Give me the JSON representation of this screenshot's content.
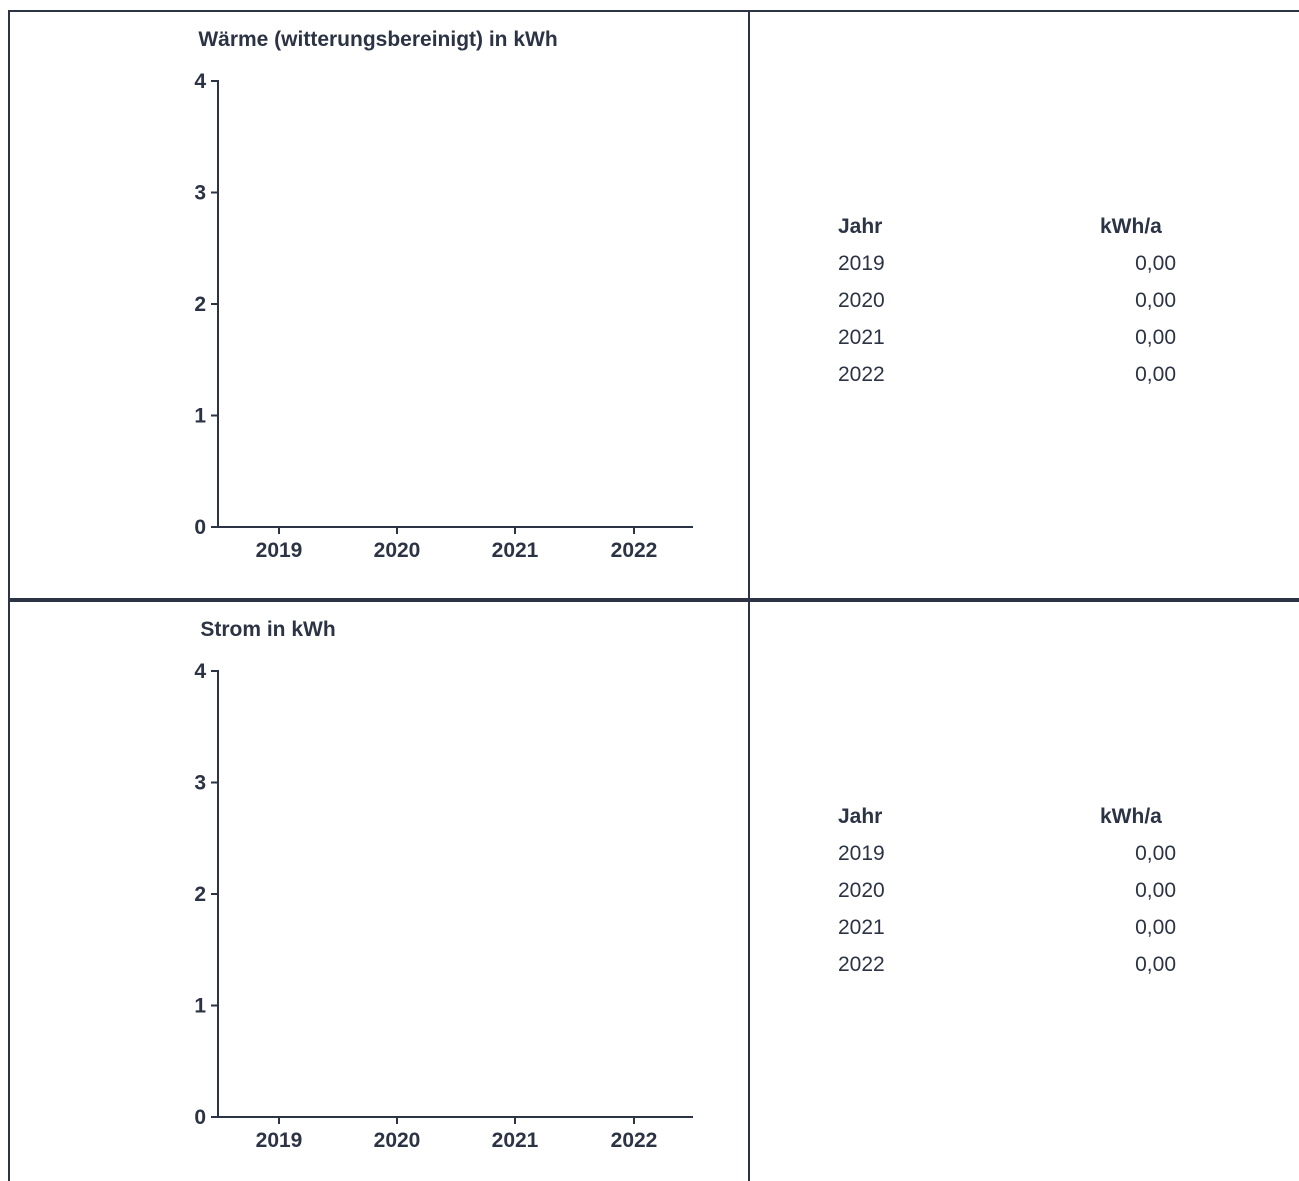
{
  "colors": {
    "line": "#2b3344",
    "text": "#2b3344",
    "background": "#ffffff"
  },
  "sections": [
    {
      "table": {
        "headers": {
          "year": "Jahr",
          "value": "kWh/a"
        },
        "rows": [
          {
            "year": "2019",
            "value": "0,00"
          },
          {
            "year": "2020",
            "value": "0,00"
          },
          {
            "year": "2021",
            "value": "0,00"
          },
          {
            "year": "2022",
            "value": "0,00"
          }
        ]
      }
    },
    {
      "table": {
        "headers": {
          "year": "Jahr",
          "value": "kWh/a"
        },
        "rows": [
          {
            "year": "2019",
            "value": "0,00"
          },
          {
            "year": "2020",
            "value": "0,00"
          },
          {
            "year": "2021",
            "value": "0,00"
          },
          {
            "year": "2022",
            "value": "0,00"
          }
        ]
      }
    }
  ],
  "chart_data": [
    {
      "type": "bar",
      "title": "Wärme (witterungsbereinigt) in kWh",
      "categories": [
        "2019",
        "2020",
        "2021",
        "2022"
      ],
      "values": [
        0,
        0,
        0,
        0
      ],
      "ylim": [
        0,
        4
      ],
      "yticks": [
        "0",
        "1",
        "2",
        "3",
        "4"
      ],
      "xlabel": "",
      "ylabel": "",
      "grid": false
    },
    {
      "type": "bar",
      "title": "Strom in kWh",
      "categories": [
        "2019",
        "2020",
        "2021",
        "2022"
      ],
      "values": [
        0,
        0,
        0,
        0
      ],
      "ylim": [
        0,
        4
      ],
      "yticks": [
        "0",
        "1",
        "2",
        "3",
        "4"
      ],
      "xlabel": "",
      "ylabel": "",
      "grid": false
    }
  ]
}
